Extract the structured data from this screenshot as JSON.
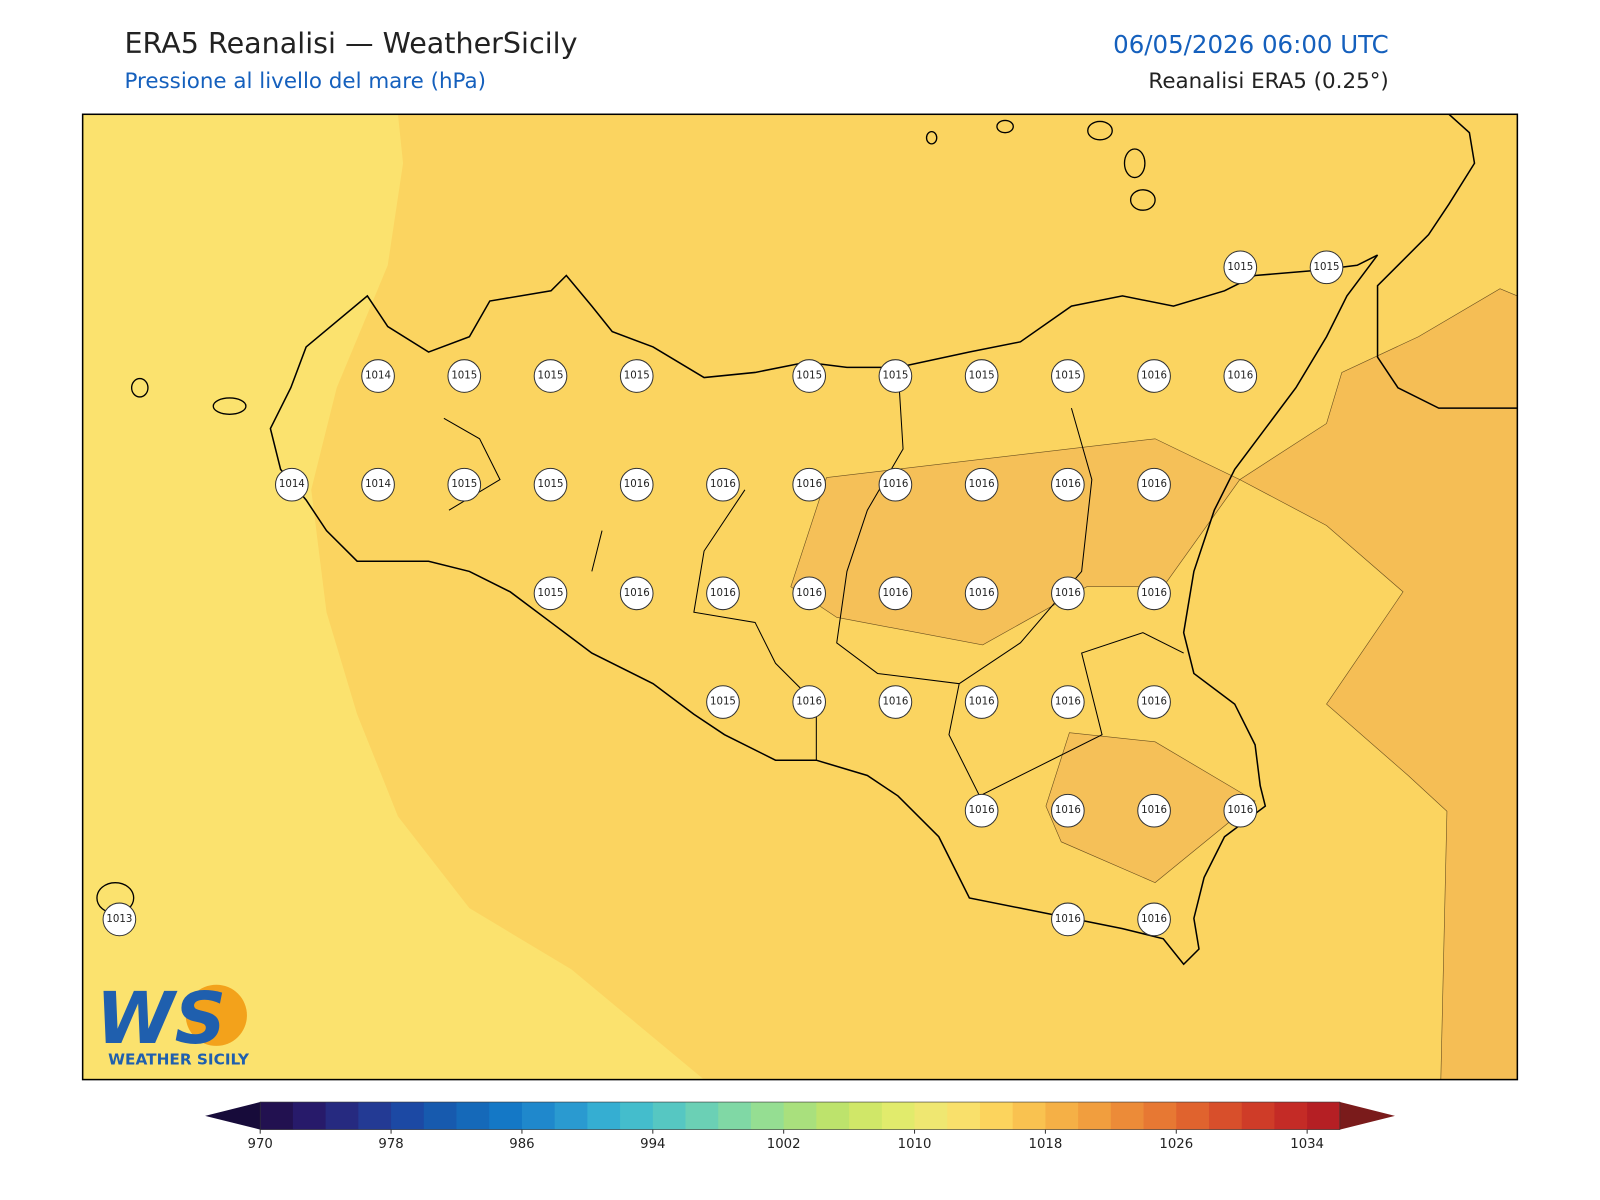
{
  "header": {
    "title": "ERA5 Reanalisi — WeatherSicily",
    "subtitle": "Pressione al livello del mare (hPa)",
    "datetime": "06/05/2026 06:00 UTC",
    "source": "Reanalisi ERA5 (0.25°)"
  },
  "grid": {
    "rows": [
      [
        null,
        null,
        null,
        null,
        null,
        null,
        null,
        null,
        null,
        null,
        null,
        null,
        null,
        1015,
        1015
      ],
      [
        null,
        null,
        null,
        1014,
        1015,
        1015,
        1015,
        null,
        1015,
        1015,
        1015,
        1015,
        1016,
        1016,
        null
      ],
      [
        null,
        null,
        1014,
        1014,
        1015,
        1015,
        1016,
        1016,
        1016,
        1016,
        1016,
        1016,
        1016,
        null,
        null
      ],
      [
        null,
        null,
        null,
        null,
        null,
        1015,
        1016,
        1016,
        1016,
        1016,
        1016,
        1016,
        1016,
        null,
        null
      ],
      [
        null,
        null,
        null,
        null,
        null,
        null,
        null,
        1015,
        1016,
        1016,
        1016,
        1016,
        1016,
        null,
        null
      ],
      [
        null,
        null,
        null,
        null,
        null,
        null,
        null,
        null,
        null,
        null,
        1016,
        1016,
        1016,
        1016,
        null
      ],
      [
        1013,
        null,
        null,
        null,
        null,
        null,
        null,
        null,
        null,
        null,
        null,
        1016,
        1016,
        null,
        null
      ]
    ]
  },
  "colorbar": {
    "start": 970,
    "step": 2,
    "ticks": [
      970,
      978,
      986,
      994,
      1002,
      1010,
      1018,
      1026,
      1034
    ],
    "colors": [
      "#221150",
      "#271a6a",
      "#262a80",
      "#233a94",
      "#1c49a4",
      "#175aae",
      "#1569b9",
      "#1478c6",
      "#1f88cc",
      "#2a9ad0",
      "#35aed2",
      "#44bdcc",
      "#56c7c2",
      "#6bd0b5",
      "#80d8a5",
      "#95de92",
      "#a9e07d",
      "#bde36c",
      "#d0e768",
      "#e1eb6c",
      "#efe771",
      "#f9e06b",
      "#fcd45d",
      "#f9c250",
      "#f5b046",
      "#f19e3e",
      "#ec8b38",
      "#e77833",
      "#e0632e",
      "#d84f2b",
      "#cf3c28",
      "#c42b26",
      "#b51f24"
    ],
    "under_color": "#170b3a",
    "over_color": "#7a1b1b"
  },
  "logo": {
    "mark": "WS",
    "name": "WEATHER SICILY"
  }
}
